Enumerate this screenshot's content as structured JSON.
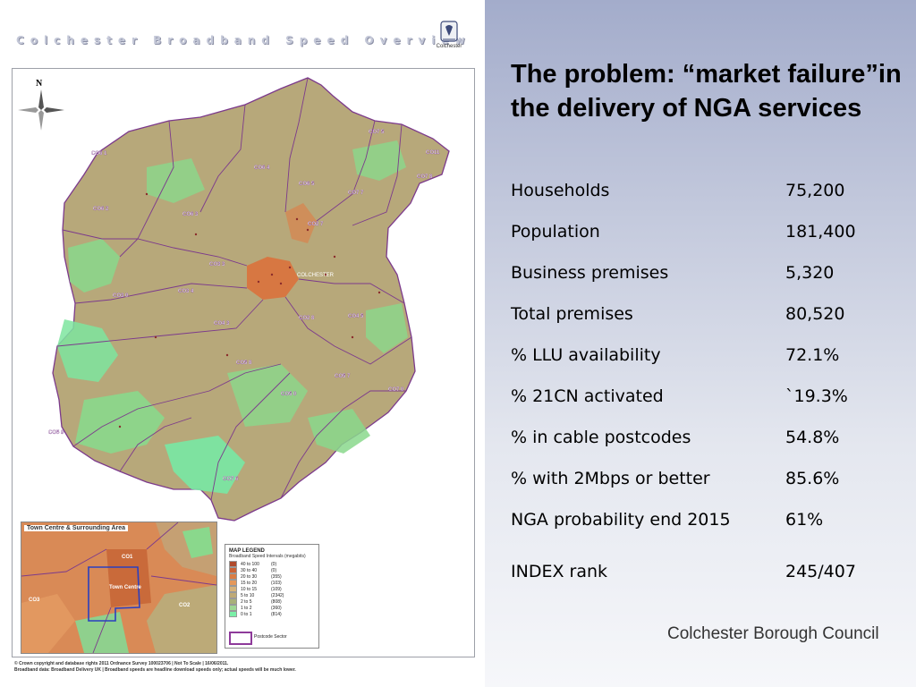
{
  "map": {
    "title": "Colchester Broadband Speed Overview",
    "logo_text": "Colchester",
    "north_label": "N",
    "region_colors": {
      "very_high": "#d8743f",
      "high": "#c5a073",
      "mid": "#a9a96d",
      "low": "#8fc885",
      "very_low": "#78e8a4",
      "boundary": "#7c3a8c"
    },
    "postcode_sectors": [
      "CO6 1",
      "CO6 2",
      "CO6 3",
      "CO6 4",
      "CO6 5",
      "CO7 5",
      "CO7 7",
      "CO7 8",
      "CO3 0",
      "CO3 3",
      "CO3 4",
      "CO4 3",
      "CO4 5",
      "CO2 7",
      "CO2 8",
      "CO5 7",
      "CO5 8",
      "CO5 0",
      "CO5 9",
      "CO7 6",
      "CO7 0",
      "CO11"
    ],
    "center_label": "COLCHESTER",
    "inset": {
      "title": "Town Centre & Surrounding Area",
      "labels": [
        "CO1",
        "Town Centre",
        "CO3",
        "CO2"
      ]
    },
    "legend": {
      "title": "MAP LEGEND",
      "subtitle": "Broadband Speed Intervals (megabits)",
      "rows": [
        {
          "range": "40 to 100",
          "count": "(0)",
          "color": "#b04a2c"
        },
        {
          "range": "30 to 40",
          "count": "(0)",
          "color": "#cc6235"
        },
        {
          "range": "20 to 30",
          "count": "(355)",
          "color": "#db7d43"
        },
        {
          "range": "15 to 20",
          "count": "(103)",
          "color": "#e5985b"
        },
        {
          "range": "10 to 15",
          "count": "(109)",
          "color": "#d7b37b"
        },
        {
          "range": "5 to 10",
          "count": "(2342)",
          "color": "#bfa975"
        },
        {
          "range": "2 to 5",
          "count": "(808)",
          "color": "#a9b07a"
        },
        {
          "range": "1 to 2",
          "count": "(360)",
          "color": "#9fd795"
        },
        {
          "range": "0 to 1",
          "count": "(814)",
          "color": "#7bf0a8"
        }
      ],
      "postcode_sector_label": "Postcode Sector"
    },
    "footer_line1": "© Crown copyright and database rights 2011 Ordnance Survey 100023706 | Not To Scale | 16/06/2011.",
    "footer_line2": "Broadband data: Broadband Delivery UK | Broadband speeds are headline download speeds only; actual speeds will be much lower."
  },
  "slide": {
    "title": "The problem: “market failure”in the delivery of NGA services",
    "stats": [
      {
        "label": "Households",
        "value": "75,200"
      },
      {
        "label": "Population",
        "value": "181,400"
      },
      {
        "label": "Business premises",
        "value": "5,320"
      },
      {
        "label": "Total premises",
        "value": "80,520"
      },
      {
        "label": "% LLU availability",
        "value": "72.1%"
      },
      {
        "label": "% 21CN activated",
        "value": "`19.3%"
      },
      {
        "label": "% in cable postcodes",
        "value": "54.8%"
      },
      {
        "label": "% with 2Mbps or better",
        "value": "85.6%"
      },
      {
        "label": "NGA probability end 2015",
        "value": "61%"
      }
    ],
    "index": {
      "label": "INDEX rank",
      "value": "245/407"
    },
    "organisation": "Colchester Borough Council"
  }
}
